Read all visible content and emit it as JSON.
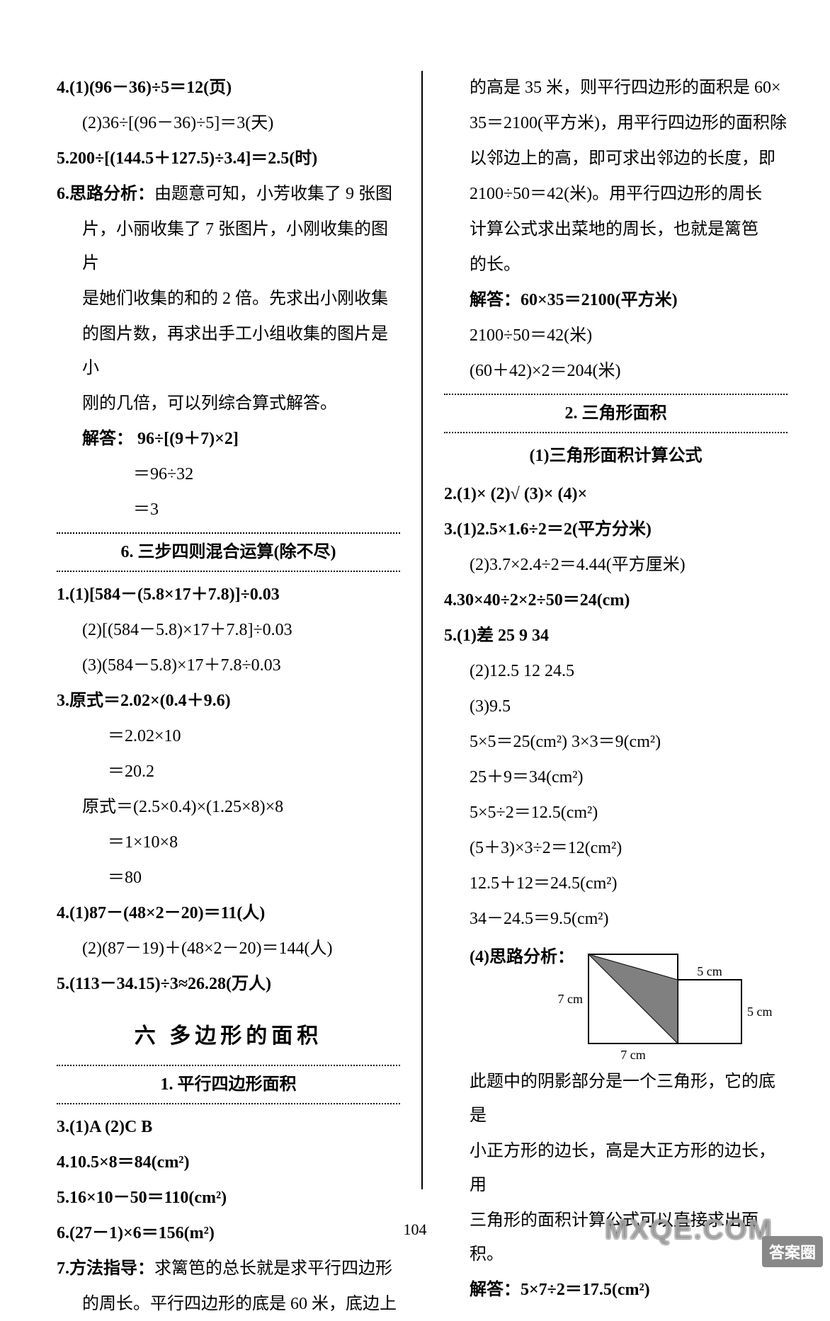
{
  "left": {
    "q4": {
      "a": "4.(1)(96－36)÷5＝12(页)",
      "b": "(2)36÷[(96－36)÷5]＝3(天)"
    },
    "q5": "5.200÷[(144.5＋127.5)÷3.4]＝2.5(时)",
    "q6": {
      "t1": "6.思路分析：由题意可知，小芳收集了 9 张图",
      "t2": "片，小丽收集了 7 张图片，小刚收集的图片",
      "t3": "是她们收集的和的 2 倍。先求出小刚收集",
      "t4": "的图片数，再求出手工小组收集的图片是小",
      "t5": "刚的几倍，可以列综合算式解答。",
      "ans1": "解答：  96÷[(9＋7)×2]",
      "ans2": "＝96÷32",
      "ans3": "＝3"
    },
    "sec6": "6. 三步四则混合运算(除不尽)",
    "s6q1": {
      "a": "1.(1)[584－(5.8×17＋7.8)]÷0.03",
      "b": "(2)[(584－5.8)×17＋7.8]÷0.03",
      "c": "(3)(584－5.8)×17＋7.8÷0.03"
    },
    "s6q3": {
      "a": "3.原式＝2.02×(0.4＋9.6)",
      "b": "＝2.02×10",
      "c": "＝20.2",
      "d": "原式＝(2.5×0.4)×(1.25×8)×8",
      "e": "＝1×10×8",
      "f": "＝80"
    },
    "s6q4": {
      "a": "4.(1)87－(48×2－20)＝11(人)",
      "b": "(2)(87－19)＋(48×2－20)＝144(人)"
    },
    "s6q5": "5.(113－34.15)÷3≈26.28(万人)",
    "chapter": "六  多边形的面积",
    "sec1": "1. 平行四边形面积",
    "p1q3": "3.(1)A  (2)C  B",
    "p1q4": "4.10.5×8＝84(cm²)",
    "p1q5": "5.16×10－50＝110(cm²)",
    "p1q6": "6.(27－1)×6＝156(m²)",
    "p1q7": {
      "a": "7.方法指导：求篱笆的总长就是求平行四边形",
      "b": "的周长。平行四边形的底是 60 米，底边上"
    }
  },
  "right": {
    "p1q7c": {
      "a": "的高是 35 米，则平行四边形的面积是 60×",
      "b": "35＝2100(平方米)，用平行四边形的面积除",
      "c": "以邻边上的高，即可求出邻边的长度，即",
      "d": "2100÷50＝42(米)。用平行四边形的周长",
      "e": "计算公式求出菜地的周长，也就是篱笆",
      "f": "的长。",
      "g": "解答：60×35＝2100(平方米)",
      "h": "2100÷50＝42(米)",
      "i": "(60＋42)×2＝204(米)"
    },
    "sec2": "2. 三角形面积",
    "sub2": "(1)三角形面积计算公式",
    "t2q2": "2.(1)×  (2)√  (3)×  (4)×",
    "t2q3": {
      "a": "3.(1)2.5×1.6÷2＝2(平方分米)",
      "b": "(2)3.7×2.4÷2＝4.44(平方厘米)"
    },
    "t2q4": "4.30×40÷2×2÷50＝24(cm)",
    "t2q5": {
      "a": "5.(1)差  25  9  34",
      "b": "(2)12.5  12  24.5",
      "c": "(3)9.5",
      "d": "5×5＝25(cm²)  3×3＝9(cm²)",
      "e": "25＋9＝34(cm²)",
      "f": "5×5÷2＝12.5(cm²)",
      "g": "(5＋3)×3÷2＝12(cm²)",
      "h": "12.5＋12＝24.5(cm²)",
      "i": "34－24.5＝9.5(cm²)",
      "j": "(4)思路分析：",
      "k": "此题中的阴影部分是一个三角形，它的底是",
      "l": "小正方形的边长，高是大正方形的边长，用",
      "m": "三角形的面积计算公式可以直接求出面积。",
      "n": "解答：5×7÷2＝17.5(cm²)"
    }
  },
  "diagram": {
    "big": 7,
    "small": 5,
    "unit": "cm",
    "labels": {
      "top": "5 cm",
      "right": "5 cm",
      "left": "7 cm",
      "bottom": "7 cm"
    },
    "colors": {
      "stroke": "#000000",
      "fill": "#808080",
      "bg": "#ffffff"
    }
  },
  "pageNumber": "104",
  "watermark": "MXQE.COM",
  "badge": "答案圈"
}
